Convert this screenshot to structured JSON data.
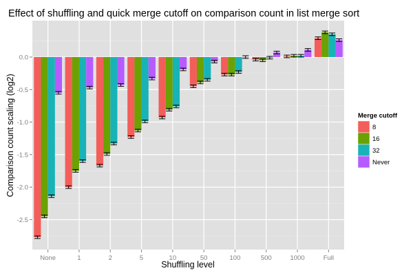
{
  "chart_data": {
    "type": "bar",
    "title": "Effect of shuffling and quick merge cutoff on comparison count in list merge sort",
    "xlabel": "Shuffling level",
    "ylabel": "Comparison count scaling (log2)",
    "ylim": [
      -2.96,
      0.56
    ],
    "yticks": [
      0.0,
      -0.5,
      -1.0,
      -1.5,
      -2.0,
      -2.5
    ],
    "ytick_labels": [
      "0.0",
      "-0.5",
      "-1.0",
      "-1.5",
      "-2.0",
      "-2.5"
    ],
    "grid": true,
    "legend_title": "Merge cutoff",
    "legend_position": "right",
    "categories": [
      "None",
      "1",
      "2",
      "5",
      "10",
      "50",
      "100",
      "500",
      "1000",
      "Full"
    ],
    "series": [
      {
        "name": "8",
        "color": "#F35E5A",
        "values": [
          -2.77,
          -2.0,
          -1.67,
          -1.23,
          -0.93,
          -0.45,
          -0.27,
          -0.04,
          0.01,
          0.29
        ]
      },
      {
        "name": "16",
        "color": "#6BA100",
        "values": [
          -2.45,
          -1.75,
          -1.49,
          -1.13,
          -0.81,
          -0.39,
          -0.27,
          -0.05,
          0.02,
          0.38
        ]
      },
      {
        "name": "32",
        "color": "#18B3B7",
        "values": [
          -2.14,
          -1.6,
          -1.33,
          -0.99,
          -0.76,
          -0.35,
          -0.23,
          -0.01,
          0.02,
          0.35
        ]
      },
      {
        "name": "Never",
        "color": "#B65CFF",
        "values": [
          -0.55,
          -0.47,
          -0.43,
          -0.33,
          -0.19,
          -0.07,
          0.0,
          0.07,
          0.11,
          0.26
        ]
      }
    ],
    "error": 0.02
  }
}
